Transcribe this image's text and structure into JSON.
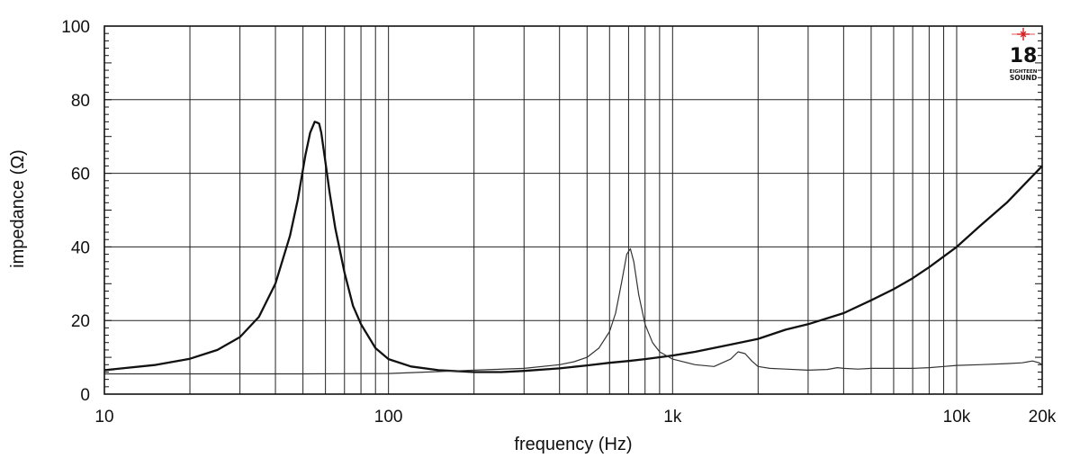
{
  "chart_data": {
    "type": "line",
    "xlabel": "frequency (Hz)",
    "ylabel": "impedance (Ω)",
    "x_scale": "log",
    "xlim": [
      10,
      20000
    ],
    "ylim": [
      0,
      100
    ],
    "grid": true,
    "x_tick_labels": [
      {
        "value": 10,
        "label": "10"
      },
      {
        "value": 100,
        "label": "100"
      },
      {
        "value": 1000,
        "label": "1k"
      },
      {
        "value": 10000,
        "label": "10k"
      },
      {
        "value": 20000,
        "label": "20k"
      }
    ],
    "y_ticks": [
      0,
      20,
      40,
      60,
      80,
      100
    ],
    "series": [
      {
        "style": "thick",
        "color": "#111111",
        "x": [
          10,
          15,
          20,
          25,
          30,
          35,
          40,
          45,
          48,
          51,
          53,
          55,
          56,
          57,
          58,
          60,
          62,
          65,
          70,
          75,
          80,
          90,
          100,
          120,
          150,
          200,
          250,
          300,
          400,
          500,
          600,
          700,
          800,
          1000,
          1200,
          1500,
          2000,
          2500,
          3000,
          4000,
          5000,
          6000,
          7000,
          8000,
          10000,
          12000,
          15000,
          20000
        ],
        "y": [
          6.5,
          7.9,
          9.6,
          12,
          15.5,
          21,
          30,
          43,
          53,
          65,
          71,
          74,
          73.8,
          73.5,
          71,
          63,
          55,
          45,
          33,
          24,
          19,
          12.5,
          9.5,
          7.5,
          6.5,
          6,
          6,
          6.3,
          7,
          7.8,
          8.5,
          9,
          9.5,
          10.5,
          11.5,
          13,
          15,
          17.5,
          19,
          22,
          25.5,
          28.5,
          31.5,
          34.5,
          40,
          45.5,
          52,
          62
        ]
      },
      {
        "style": "thin",
        "color": "#333333",
        "x": [
          10,
          20,
          50,
          100,
          200,
          300,
          400,
          450,
          500,
          550,
          600,
          630,
          660,
          690,
          710,
          730,
          760,
          800,
          850,
          900,
          1000,
          1200,
          1400,
          1600,
          1700,
          1800,
          1900,
          2000,
          2200,
          2500,
          3000,
          3500,
          3800,
          4000,
          4500,
          5000,
          6000,
          7000,
          8000,
          9000,
          10000,
          12000,
          15000,
          17000,
          18500,
          19500,
          20000
        ],
        "y": [
          5.5,
          5.5,
          5.5,
          5.6,
          6.5,
          7,
          8,
          8.8,
          10,
          12.5,
          17,
          22,
          30,
          38,
          39.5,
          36,
          27,
          19,
          14,
          11.5,
          9.5,
          8,
          7.5,
          9.5,
          11.5,
          11,
          9,
          7.5,
          7,
          6.8,
          6.5,
          6.7,
          7.2,
          7,
          6.8,
          7,
          7,
          7,
          7.2,
          7.5,
          7.8,
          8,
          8.3,
          8.5,
          9,
          8.5,
          8
        ]
      }
    ],
    "logo": {
      "number": "18",
      "line1": "EIGHTEEN",
      "line2": "SOUND",
      "accent_color": "#d42020"
    }
  }
}
